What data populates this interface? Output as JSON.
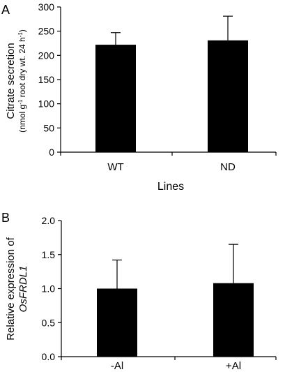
{
  "chart_data": [
    {
      "type": "bar",
      "panel_label": "A",
      "title": "",
      "categories": [
        "WT",
        "ND"
      ],
      "values": [
        222,
        231
      ],
      "errors": [
        25,
        50
      ],
      "xlabel": "Lines",
      "ylabel_line1": "Citrate secretion",
      "ylabel_line2_parts": [
        "(nmol g",
        "-1",
        " root dry wt. 24 h",
        "-1",
        ")"
      ],
      "ylim": [
        0,
        300
      ],
      "yticks": [
        "0",
        "50",
        "100",
        "150",
        "200",
        "250",
        "300"
      ],
      "bar_color": "#000000"
    },
    {
      "type": "bar",
      "panel_label": "B",
      "title": "",
      "categories": [
        "-Al",
        "+Al"
      ],
      "values": [
        1.0,
        1.08
      ],
      "errors": [
        0.42,
        0.57
      ],
      "xlabel": "",
      "ylabel_line1": "Relative expression of",
      "ylabel_line2": "OsFRDL1",
      "ylim": [
        0,
        2.0
      ],
      "yticks": [
        "0.0",
        "0.5",
        "1.0",
        "1.5",
        "2.0"
      ],
      "bar_color": "#000000"
    }
  ]
}
